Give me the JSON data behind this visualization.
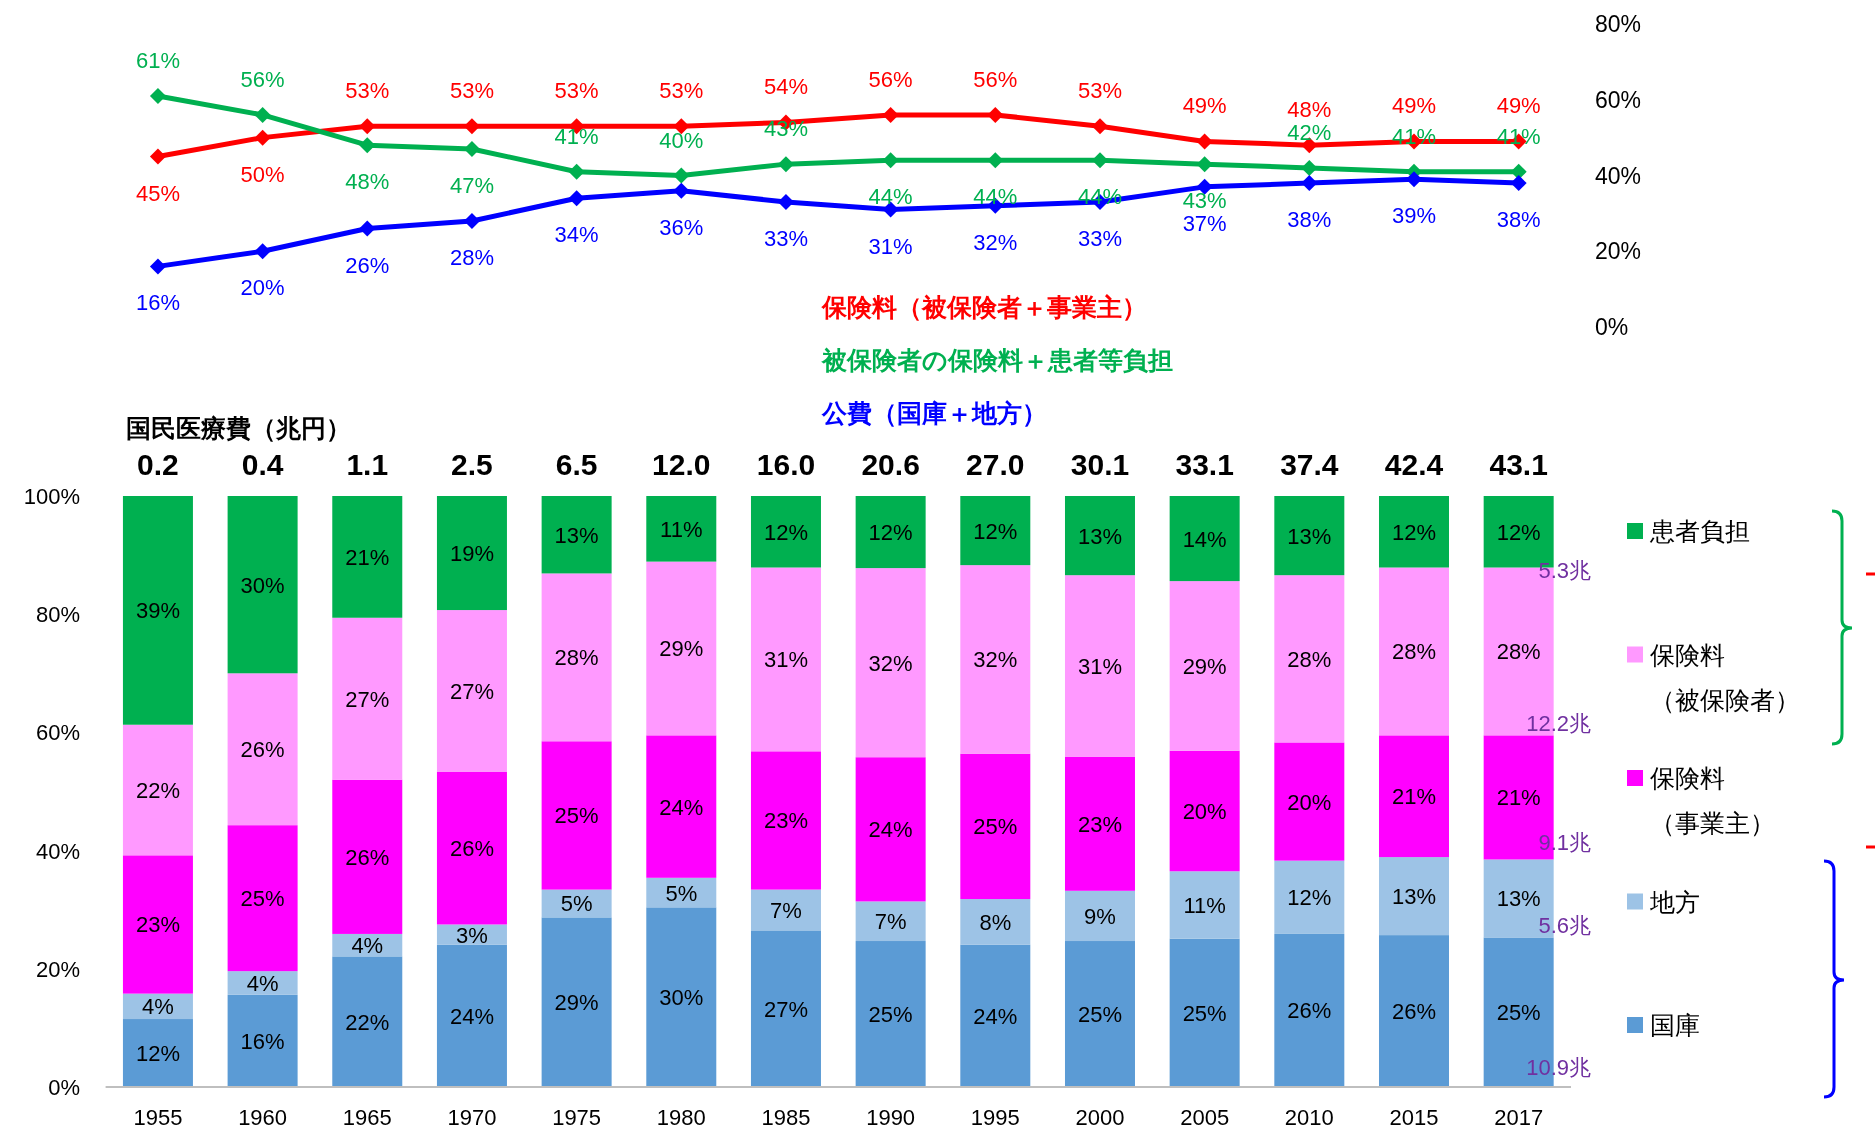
{
  "chart_data": [
    {
      "type": "line",
      "categories": [
        null,
        null,
        null,
        null,
        null,
        null,
        null,
        null,
        null,
        null,
        null,
        null,
        null,
        null
      ],
      "ylim": [
        0,
        80
      ],
      "yticks": [
        {
          "value": 0,
          "label": "0%"
        },
        {
          "value": 20,
          "label": "20%"
        },
        {
          "value": 40,
          "label": "40%"
        },
        {
          "value": 60,
          "label": "60%"
        },
        {
          "value": 80,
          "label": "80%"
        }
      ],
      "tick_labels": "y",
      "legend": "bottom",
      "marker": "diamond",
      "line_style": "solid",
      "series": [
        {
          "name": "保険料（被保険者＋事業主）",
          "color": "#ff0000",
          "values": [
            45,
            50,
            53,
            53,
            53,
            53,
            54,
            56,
            56,
            53,
            49,
            48,
            49,
            49
          ],
          "value_labels": [
            "45%",
            "50%",
            "53%",
            "53%",
            "53%",
            "53%",
            "54%",
            "56%",
            "56%",
            "53%",
            "49%",
            "48%",
            "49%",
            "49%"
          ]
        },
        {
          "name": "被保険者の保険料＋患者等負担",
          "color": "#00b050",
          "values": [
            61,
            56,
            48,
            47,
            41,
            40,
            43,
            44,
            44,
            44,
            43,
            42,
            41,
            41
          ],
          "value_labels": [
            "61%",
            "56%",
            "48%",
            "47%",
            "41%",
            "40%",
            "43%",
            "44%",
            "44%",
            "44%",
            "43%",
            "42%",
            "41%",
            "41%"
          ]
        },
        {
          "name": "公費（国庫＋地方）",
          "color": "#0000ff",
          "values": [
            16,
            20,
            26,
            28,
            34,
            36,
            33,
            31,
            32,
            33,
            37,
            38,
            39,
            38
          ],
          "value_labels": [
            "16%",
            "20%",
            "26%",
            "28%",
            "34%",
            "36%",
            "33%",
            "31%",
            "32%",
            "33%",
            "37%",
            "38%",
            "39%",
            "38%"
          ]
        }
      ]
    },
    {
      "type": "bar",
      "stacked": true,
      "categories": [
        "1955",
        "1960",
        "1965",
        "1970",
        "1975",
        "1980",
        "1985",
        "1990",
        "1995",
        "2000",
        "2005",
        "2010",
        "2015",
        "2017"
      ],
      "ylim": [
        0,
        100
      ],
      "yticks": [
        {
          "value": 0,
          "label": "0%"
        },
        {
          "value": 20,
          "label": "20%"
        },
        {
          "value": 40,
          "label": "40%"
        },
        {
          "value": 60,
          "label": "60%"
        },
        {
          "value": 80,
          "label": "80%"
        },
        {
          "value": 100,
          "label": "100%"
        }
      ],
      "legend": "right",
      "series": [
        {
          "name": "国庫",
          "color": "#5b9bd5",
          "values": [
            11.5,
            15.6,
            22.1,
            24.1,
            28.7,
            30.4,
            26.5,
            24.7,
            24.1,
            24.7,
            25.1,
            25.9,
            25.7,
            25.3
          ],
          "value_labels": [
            "12%",
            "16%",
            "22%",
            "24%",
            "29%",
            "30%",
            "27%",
            "25%",
            "24%",
            "25%",
            "25%",
            "26%",
            "26%",
            "25%"
          ]
        },
        {
          "name": "地方",
          "color": "#9dc3e6",
          "values": [
            4.3,
            4.0,
            3.8,
            3.4,
            4.7,
            5.0,
            6.9,
            6.7,
            7.7,
            8.5,
            11.4,
            12.4,
            13.2,
            13.2
          ],
          "value_labels": [
            "4%",
            "4%",
            "4%",
            "3%",
            "5%",
            "5%",
            "7%",
            "7%",
            "8%",
            "9%",
            "11%",
            "12%",
            "13%",
            "13%"
          ]
        },
        {
          "name": "保険料（事業主）",
          "color": "#ff00ff",
          "values": [
            23.4,
            24.7,
            26.1,
            25.8,
            25.1,
            24.1,
            23.4,
            24.4,
            24.6,
            22.7,
            20.4,
            20.0,
            20.6,
            21.0
          ],
          "value_labels": [
            "23%",
            "25%",
            "26%",
            "26%",
            "25%",
            "24%",
            "23%",
            "24%",
            "25%",
            "23%",
            "20%",
            "20%",
            "21%",
            "21%"
          ]
        },
        {
          "name": "保険料（被保険者）",
          "color": "#ff99ff",
          "values": [
            22.1,
            25.7,
            27.4,
            27.4,
            28.4,
            29.4,
            31.1,
            32.0,
            31.9,
            30.7,
            28.7,
            28.3,
            28.4,
            28.4
          ],
          "value_labels": [
            "22%",
            "26%",
            "27%",
            "27%",
            "28%",
            "29%",
            "31%",
            "32%",
            "32%",
            "31%",
            "29%",
            "28%",
            "28%",
            "28%"
          ]
        },
        {
          "name": "患者負担",
          "color": "#00b050",
          "values": [
            38.7,
            30.0,
            20.6,
            19.3,
            13.1,
            11.1,
            12.1,
            12.2,
            11.7,
            13.4,
            14.4,
            13.4,
            12.1,
            12.1
          ],
          "value_labels": [
            "39%",
            "30%",
            "21%",
            "19%",
            "13%",
            "11%",
            "12%",
            "12%",
            "12%",
            "13%",
            "14%",
            "13%",
            "12%",
            "12%"
          ]
        }
      ],
      "annotations": [
        "国民医療費（兆円）",
        "0.2",
        "0.4",
        "1.1",
        "2.5",
        "6.5",
        "12.0",
        "16.0",
        "20.6",
        "27.0",
        "30.1",
        "33.1",
        "37.4",
        "42.4",
        "43.1",
        "5.3兆",
        "12.2兆",
        "9.1兆",
        "5.6兆",
        "10.9兆"
      ]
    }
  ]
}
